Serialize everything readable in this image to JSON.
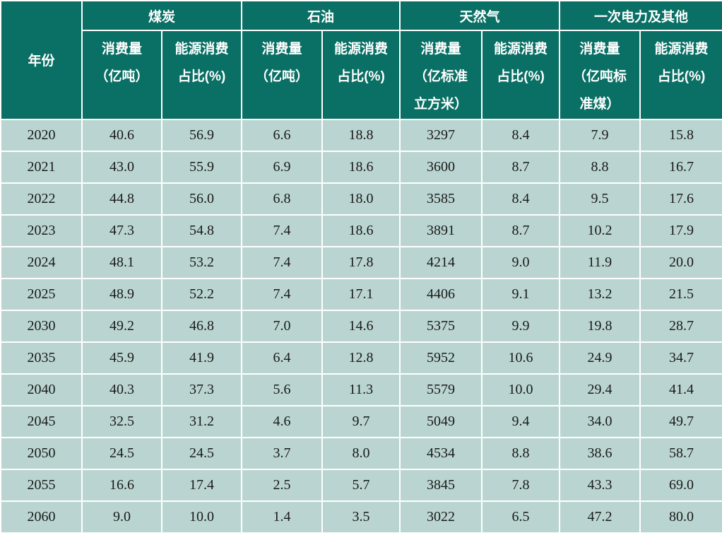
{
  "colors": {
    "header_bg": "#0a6f64",
    "header_text": "#ffffff",
    "body_bg": "#bad5d1",
    "body_text": "#1a1a1a",
    "grid": "#ffffff"
  },
  "table": {
    "year_header": "年份",
    "groups": [
      {
        "label": "煤炭",
        "subs": [
          "消费量\n（亿吨）",
          "能源消费\n占比(%)"
        ]
      },
      {
        "label": "石油",
        "subs": [
          "消费量\n（亿吨）",
          "能源消费\n占比(%)"
        ]
      },
      {
        "label": "天然气",
        "subs": [
          "消费量\n（亿标准\n立方米）",
          "能源消费\n占比(%)"
        ]
      },
      {
        "label": "一次电力及其他",
        "subs": [
          "消费量\n（亿吨标\n准煤）",
          "能源消费\n占比(%)"
        ]
      }
    ],
    "rows": [
      [
        "2020",
        "40.6",
        "56.9",
        "6.6",
        "18.8",
        "3297",
        "8.4",
        "7.9",
        "15.8"
      ],
      [
        "2021",
        "43.0",
        "55.9",
        "6.9",
        "18.6",
        "3600",
        "8.7",
        "8.8",
        "16.7"
      ],
      [
        "2022",
        "44.8",
        "56.0",
        "6.8",
        "18.0",
        "3585",
        "8.4",
        "9.5",
        "17.6"
      ],
      [
        "2023",
        "47.3",
        "54.8",
        "7.4",
        "18.6",
        "3891",
        "8.7",
        "10.2",
        "17.9"
      ],
      [
        "2024",
        "48.1",
        "53.2",
        "7.4",
        "17.8",
        "4214",
        "9.0",
        "11.9",
        "20.0"
      ],
      [
        "2025",
        "48.9",
        "52.2",
        "7.4",
        "17.1",
        "4406",
        "9.1",
        "13.2",
        "21.5"
      ],
      [
        "2030",
        "49.2",
        "46.8",
        "7.0",
        "14.6",
        "5375",
        "9.9",
        "19.8",
        "28.7"
      ],
      [
        "2035",
        "45.9",
        "41.9",
        "6.4",
        "12.8",
        "5952",
        "10.6",
        "24.9",
        "34.7"
      ],
      [
        "2040",
        "40.3",
        "37.3",
        "5.6",
        "11.3",
        "5579",
        "10.0",
        "29.4",
        "41.4"
      ],
      [
        "2045",
        "32.5",
        "31.2",
        "4.6",
        "9.7",
        "5049",
        "9.4",
        "34.0",
        "49.7"
      ],
      [
        "2050",
        "24.5",
        "24.5",
        "3.7",
        "8.0",
        "4534",
        "8.8",
        "38.6",
        "58.7"
      ],
      [
        "2055",
        "16.6",
        "17.4",
        "2.5",
        "5.7",
        "3845",
        "7.8",
        "43.3",
        "69.0"
      ],
      [
        "2060",
        "9.0",
        "10.0",
        "1.4",
        "3.5",
        "3022",
        "6.5",
        "47.2",
        "80.0"
      ]
    ]
  },
  "chart_data": {
    "type": "table",
    "title": "",
    "columns": [
      "年份",
      "煤炭消费量（亿吨）",
      "煤炭能源消费占比(%)",
      "石油消费量（亿吨）",
      "石油能源消费占比(%)",
      "天然气消费量（亿标准立方米）",
      "天然气能源消费占比(%)",
      "一次电力及其他消费量（亿吨标准煤）",
      "一次电力及其他能源消费占比(%)"
    ],
    "rows": [
      [
        2020,
        40.6,
        56.9,
        6.6,
        18.8,
        3297,
        8.4,
        7.9,
        15.8
      ],
      [
        2021,
        43.0,
        55.9,
        6.9,
        18.6,
        3600,
        8.7,
        8.8,
        16.7
      ],
      [
        2022,
        44.8,
        56.0,
        6.8,
        18.0,
        3585,
        8.4,
        9.5,
        17.6
      ],
      [
        2023,
        47.3,
        54.8,
        7.4,
        18.6,
        3891,
        8.7,
        10.2,
        17.9
      ],
      [
        2024,
        48.1,
        53.2,
        7.4,
        17.8,
        4214,
        9.0,
        11.9,
        20.0
      ],
      [
        2025,
        48.9,
        52.2,
        7.4,
        17.1,
        4406,
        9.1,
        13.2,
        21.5
      ],
      [
        2030,
        49.2,
        46.8,
        7.0,
        14.6,
        5375,
        9.9,
        19.8,
        28.7
      ],
      [
        2035,
        45.9,
        41.9,
        6.4,
        12.8,
        5952,
        10.6,
        24.9,
        34.7
      ],
      [
        2040,
        40.3,
        37.3,
        5.6,
        11.3,
        5579,
        10.0,
        29.4,
        41.4
      ],
      [
        2045,
        32.5,
        31.2,
        4.6,
        9.7,
        5049,
        9.4,
        34.0,
        49.7
      ],
      [
        2050,
        24.5,
        24.5,
        3.7,
        8.0,
        4534,
        8.8,
        38.6,
        58.7
      ],
      [
        2055,
        16.6,
        17.4,
        2.5,
        5.7,
        3845,
        7.8,
        43.3,
        69.0
      ],
      [
        2060,
        9.0,
        10.0,
        1.4,
        3.5,
        3022,
        6.5,
        47.2,
        80.0
      ]
    ]
  }
}
